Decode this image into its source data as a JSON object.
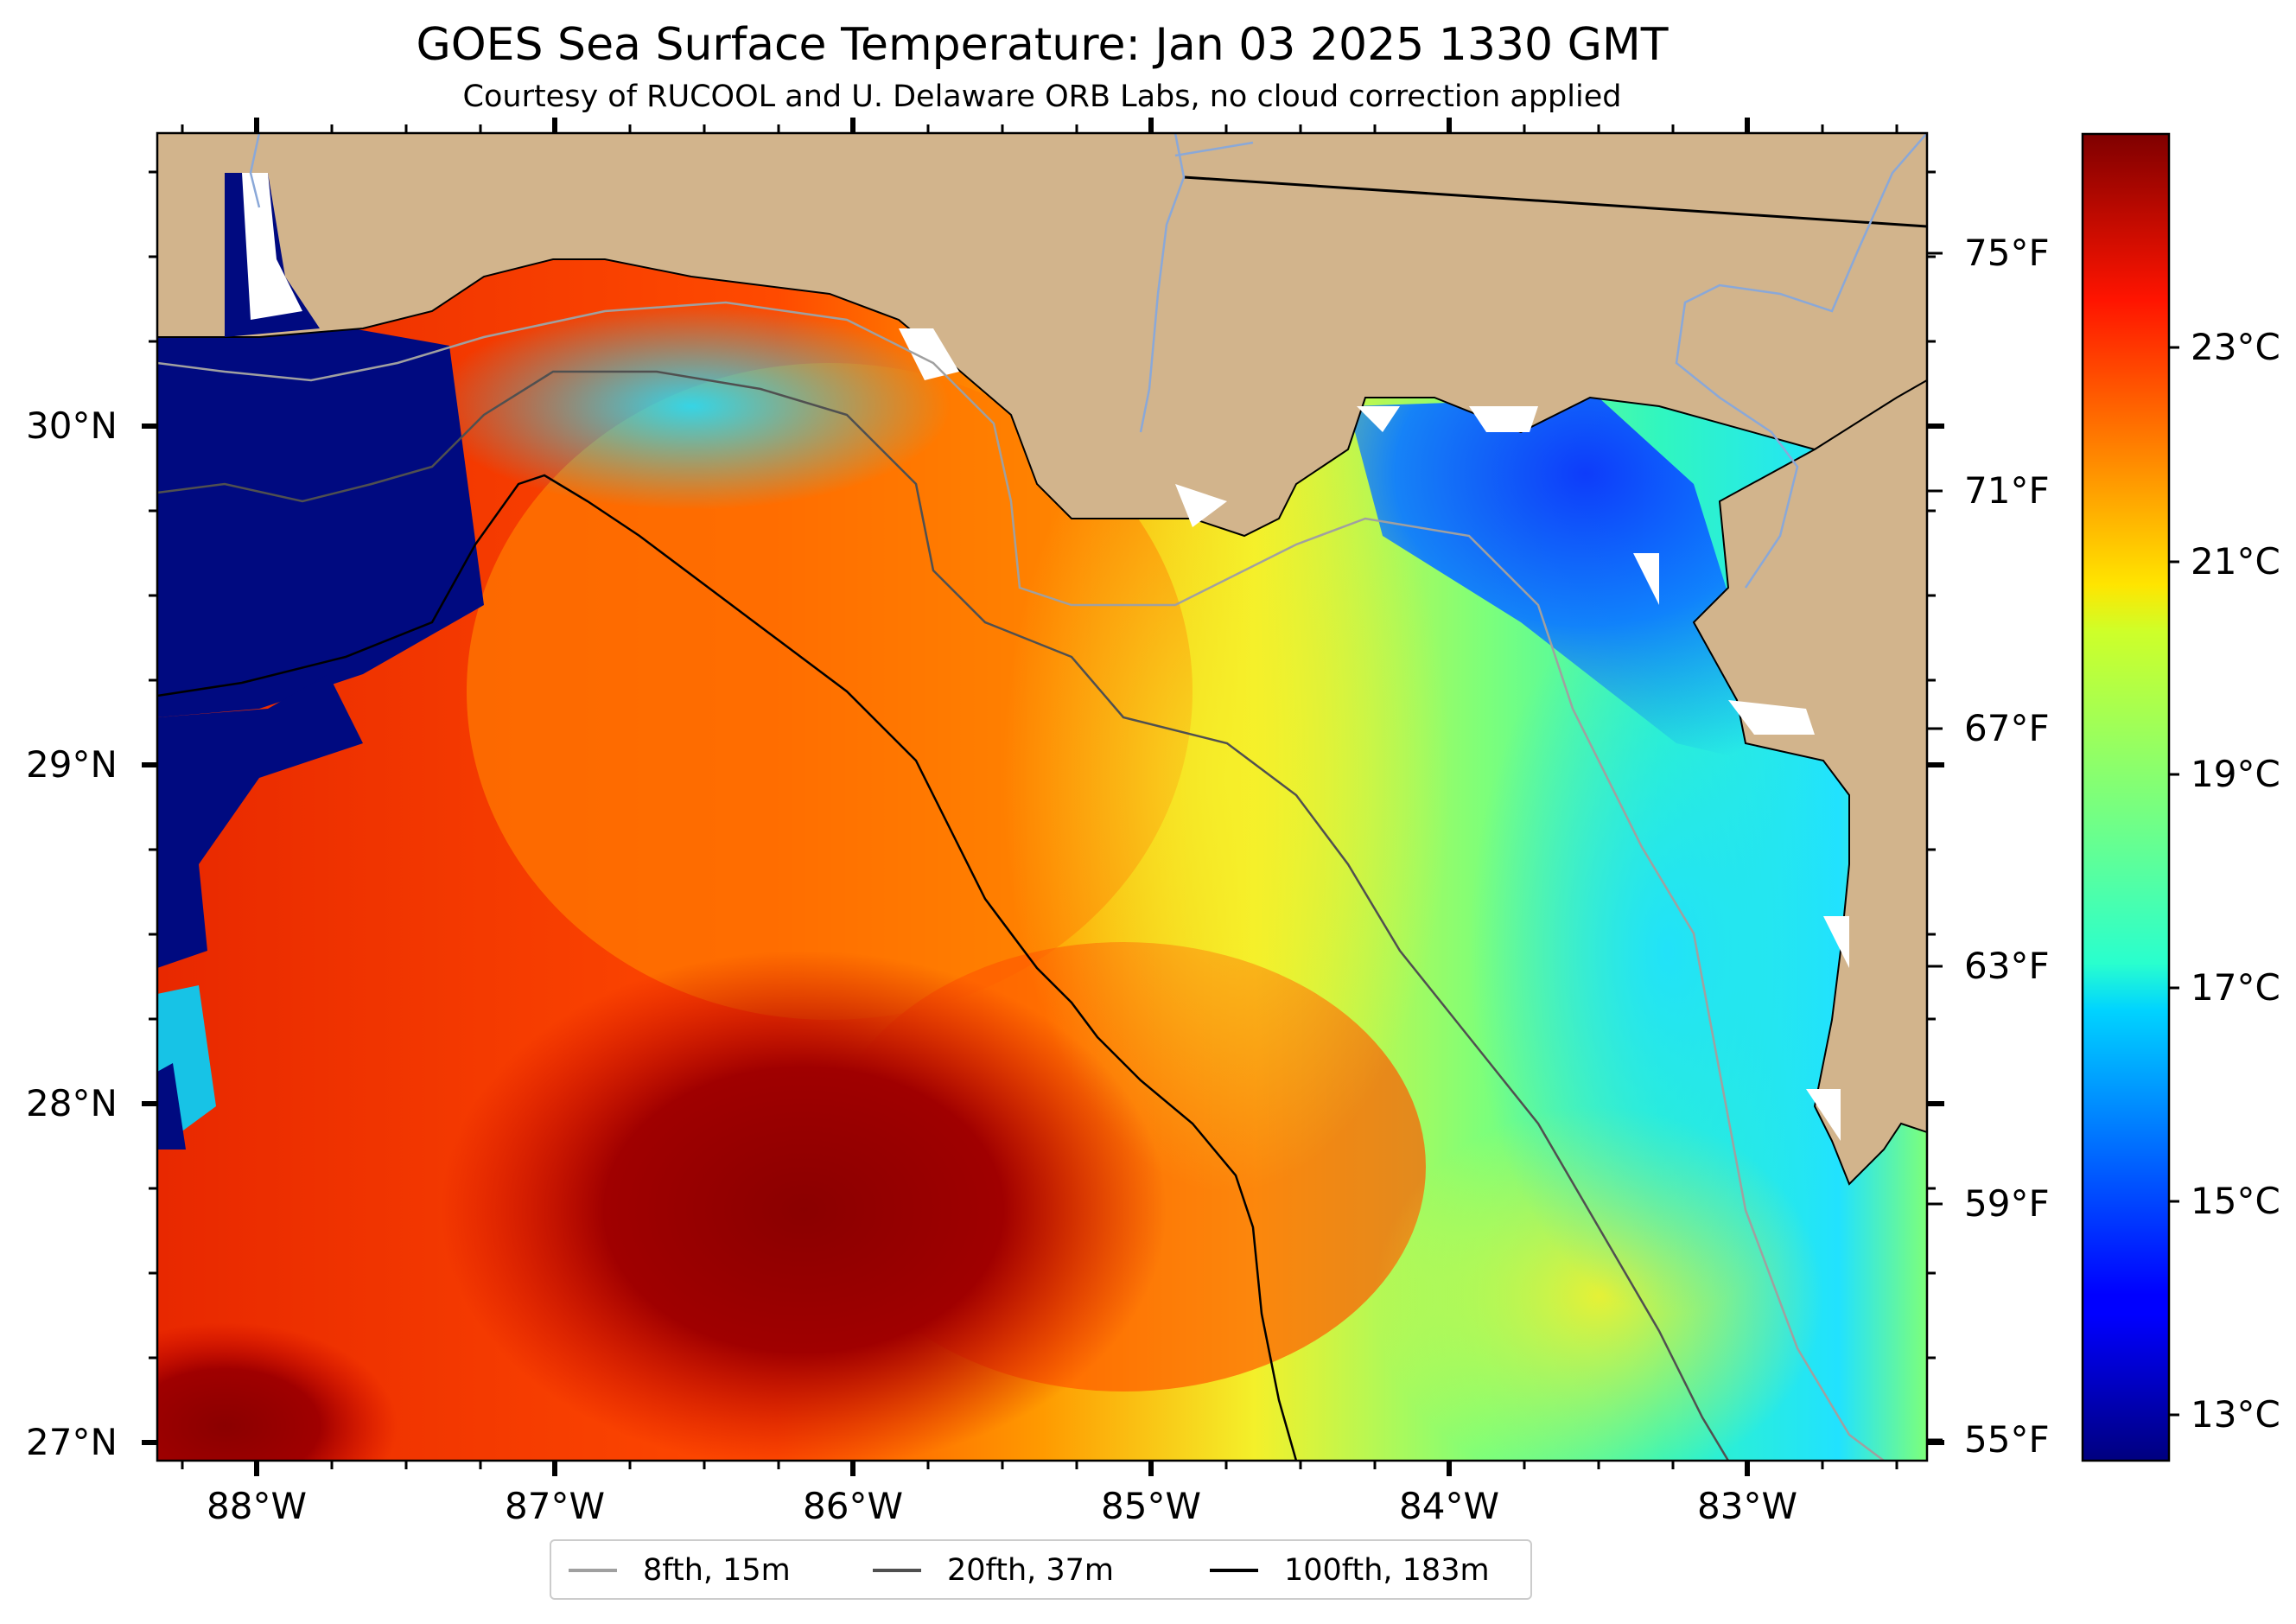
{
  "title": "GOES Sea Surface Temperature: Jan 03 2025 1330 GMT",
  "subtitle": "Courtesy of RUCOOL and U. Delaware ORB Labs, no cloud correction applied",
  "map": {
    "latitude_labels": [
      "30°N",
      "29°N",
      "28°N",
      "27°N"
    ],
    "longitude_labels": [
      "88°W",
      "87°W",
      "86°W",
      "85°W",
      "84°W",
      "83°W"
    ],
    "fahrenheit_labels": [
      "75°F",
      "71°F",
      "67°F",
      "63°F",
      "59°F",
      "55°F"
    ],
    "land_color": "#d2b48c",
    "ocean_palette": "jet"
  },
  "colorbar": {
    "labels": [
      "23°C",
      "21°C",
      "19°C",
      "17°C",
      "15°C",
      "13°C"
    ],
    "colormap": "jet"
  },
  "legend": {
    "items": [
      {
        "label": "8fth, 15m",
        "color": "#a0a0a0"
      },
      {
        "label": "20fth, 37m",
        "color": "#505050"
      },
      {
        "label": "100fth, 183m",
        "color": "#000000"
      }
    ]
  }
}
